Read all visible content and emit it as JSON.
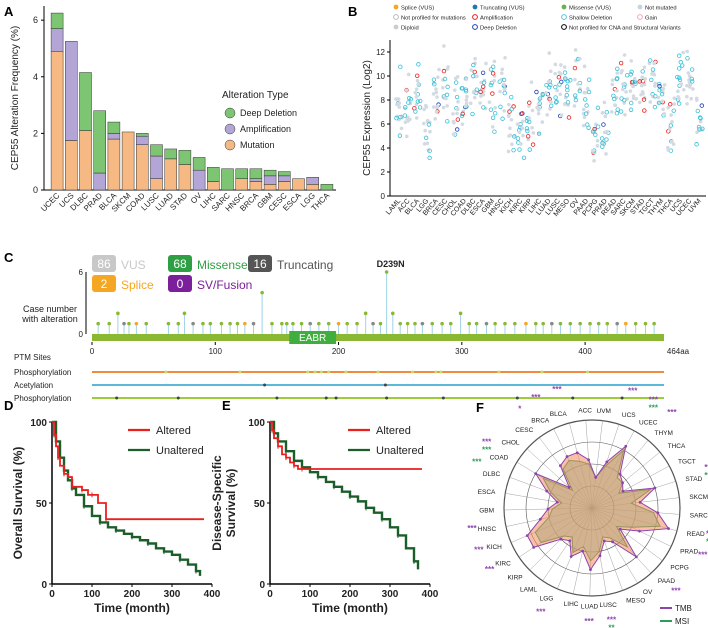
{
  "panel_labels": {
    "a": "A",
    "b": "B",
    "c": "C",
    "d": "D",
    "e": "E",
    "f": "F"
  },
  "colors": {
    "deep_deletion": "#7dc573",
    "amplification": "#b3a6d6",
    "mutation": "#f6b983",
    "altered": "#e8201f",
    "unaltered": "#1b5e2a",
    "lollipop_green": "#8ab832",
    "missense_badge": "#2ea043",
    "vus_badge": "#c8c8c8",
    "splice_badge": "#f5a623",
    "truncating_badge": "#555555",
    "sv_badge": "#7b1f9a",
    "tmb": "#8e44ad",
    "msi": "#2e9c5a",
    "stem": "#9fd3ea"
  },
  "chart_data": [
    {
      "id": "A",
      "type": "bar",
      "stacked": true,
      "ylabel": "CEP55 Alteration Frequency (%)",
      "ylim": [
        0,
        6.5
      ],
      "yticks": [
        "0",
        "2",
        "4",
        "6"
      ],
      "legend_title": "Alteration Type",
      "categories": [
        "UCEC",
        "UCS",
        "DLBC",
        "PRAD",
        "BLCA",
        "SKCM",
        "COAD",
        "LUSC",
        "LUAD",
        "STAD",
        "OV",
        "LIHC",
        "SARC",
        "HNSC",
        "BRCA",
        "GBM",
        "CESC",
        "ESCA",
        "LGG",
        "THCA"
      ],
      "series": [
        {
          "name": "Mutation",
          "values": [
            4.9,
            1.75,
            2.1,
            0,
            1.8,
            2.05,
            1.6,
            0.4,
            1.1,
            0.9,
            0,
            0.3,
            0,
            0.4,
            0.3,
            0.2,
            0.3,
            0.4,
            0.2,
            0
          ]
        },
        {
          "name": "Amplification",
          "values": [
            0.8,
            3.5,
            0,
            0.6,
            0.2,
            0,
            0.3,
            0.8,
            0,
            0,
            0.7,
            0,
            0,
            0,
            0.1,
            0.3,
            0.2,
            0,
            0.25,
            0
          ]
        },
        {
          "name": "Deep Deletion",
          "values": [
            0.55,
            0,
            2.05,
            2.2,
            0.4,
            0,
            0.1,
            0.4,
            0.35,
            0.5,
            0.45,
            0.5,
            0.75,
            0.35,
            0.35,
            0.2,
            0.15,
            0,
            0,
            0.2
          ]
        }
      ]
    },
    {
      "id": "B",
      "type": "scatter",
      "ylabel": "CEP55 Expression  (Log2)",
      "ylim": [
        0,
        13
      ],
      "yticks": [
        "0",
        "2",
        "4",
        "6",
        "8",
        "10",
        "12"
      ],
      "categories": [
        "LAML",
        "ACC",
        "BLCA",
        "LGG",
        "BRCA",
        "CESC",
        "CHOL",
        "COAD",
        "DLBC",
        "ESCA",
        "GBM",
        "HNSC",
        "KICH",
        "KIRC",
        "KIRP",
        "LIHC",
        "LUAD",
        "LUSC",
        "MESO",
        "OV",
        "PAAD",
        "PCPG",
        "PRAD",
        "READ",
        "SARC",
        "SKCM",
        "STAD",
        "TGCT",
        "THYM",
        "THCA",
        "UCS",
        "UCEC",
        "UVM"
      ],
      "medians": [
        7.5,
        8.0,
        8.5,
        5.5,
        8.8,
        9.5,
        7.8,
        8.5,
        9.2,
        9.0,
        8.5,
        9.0,
        6.0,
        5.5,
        6.5,
        8.0,
        9.0,
        9.5,
        8.5,
        9.5,
        8.0,
        5.0,
        5.5,
        8.5,
        8.8,
        8.5,
        9.0,
        9.8,
        8.0,
        6.0,
        9.5,
        9.8,
        5.5
      ],
      "legend": [
        {
          "name": "Splice (VUS)",
          "color": "#f5a623"
        },
        {
          "name": "Truncating (VUS)",
          "color": "#1f77b4"
        },
        {
          "name": "Missense (VUS)",
          "color": "#6ab04c"
        },
        {
          "name": "Not mutated",
          "color": "#c8d3e0"
        },
        {
          "name": "Not profiled for mutations",
          "color": "#ffffff"
        },
        {
          "name": "Amplification",
          "color": "#e8201f"
        },
        {
          "name": "Shallow Deletion",
          "color": "#5bc0de"
        },
        {
          "name": "Gain",
          "color": "#f4a6b7"
        },
        {
          "name": "Diploid",
          "color": "#cccccc"
        },
        {
          "name": "Deep Deletion",
          "color": "#1f3fb4"
        },
        {
          "name": "Not profiled for CNA and Structural Variants",
          "color": "#000000"
        }
      ]
    },
    {
      "id": "C",
      "type": "lollipop",
      "ylabel_line1": "Case number",
      "ylabel_line2": "with alteration",
      "ylim": [
        0,
        6
      ],
      "yticks": [
        "0",
        "6"
      ],
      "protein_length": 464,
      "length_label": "464aa",
      "xticks": [
        "0",
        "100",
        "200",
        "300",
        "400"
      ],
      "domain": {
        "name": "EABR",
        "start": 160,
        "end": 198
      },
      "hotspot": {
        "label": "D239N",
        "position": 239,
        "count": 6
      },
      "badges": [
        {
          "count": "86",
          "label": "VUS"
        },
        {
          "count": "68",
          "label": "Missense"
        },
        {
          "count": "16",
          "label": "Truncating"
        },
        {
          "count": "2",
          "label": "Splice"
        },
        {
          "count": "0",
          "label": "SV/Fusion"
        }
      ],
      "mutations": [
        [
          5,
          1
        ],
        [
          14,
          1
        ],
        [
          21,
          2
        ],
        [
          26,
          1
        ],
        [
          30,
          1
        ],
        [
          36,
          1
        ],
        [
          44,
          1
        ],
        [
          62,
          1
        ],
        [
          70,
          1
        ],
        [
          75,
          2
        ],
        [
          82,
          1
        ],
        [
          90,
          1
        ],
        [
          96,
          1
        ],
        [
          105,
          1
        ],
        [
          112,
          1
        ],
        [
          118,
          1
        ],
        [
          124,
          1
        ],
        [
          131,
          1
        ],
        [
          138,
          4
        ],
        [
          146,
          1
        ],
        [
          154,
          1
        ],
        [
          158,
          1
        ],
        [
          163,
          1
        ],
        [
          170,
          1
        ],
        [
          177,
          1
        ],
        [
          184,
          1
        ],
        [
          192,
          1
        ],
        [
          200,
          1
        ],
        [
          207,
          1
        ],
        [
          215,
          1
        ],
        [
          222,
          2
        ],
        [
          228,
          1
        ],
        [
          234,
          1
        ],
        [
          239,
          6
        ],
        [
          244,
          2
        ],
        [
          250,
          1
        ],
        [
          256,
          1
        ],
        [
          262,
          1
        ],
        [
          268,
          1
        ],
        [
          276,
          1
        ],
        [
          284,
          1
        ],
        [
          291,
          1
        ],
        [
          299,
          2
        ],
        [
          306,
          1
        ],
        [
          312,
          1
        ],
        [
          320,
          1
        ],
        [
          327,
          1
        ],
        [
          335,
          1
        ],
        [
          343,
          1
        ],
        [
          352,
          1
        ],
        [
          360,
          1
        ],
        [
          366,
          1
        ],
        [
          373,
          1
        ],
        [
          380,
          1
        ],
        [
          388,
          1
        ],
        [
          396,
          1
        ],
        [
          404,
          1
        ],
        [
          411,
          1
        ],
        [
          418,
          1
        ],
        [
          426,
          1
        ],
        [
          433,
          1
        ],
        [
          441,
          1
        ],
        [
          449,
          1
        ],
        [
          456,
          1
        ]
      ],
      "ptm_title": "PTM Sites",
      "ptm_tracks": [
        {
          "name": "Phosphorylation",
          "color": "#f08a3c",
          "sites": [
            60,
            120,
            175,
            181,
            186,
            192,
            206,
            232,
            260,
            279,
            283,
            330,
            365,
            402
          ]
        },
        {
          "name": "Acetylation",
          "color": "#5bb8d8",
          "sites": [
            140,
            238
          ]
        },
        {
          "name": "Phosphorylation",
          "color": "#9ccc3a",
          "sites": [
            20,
            70,
            150,
            190,
            198,
            239,
            285,
            345,
            390,
            430
          ]
        }
      ]
    },
    {
      "id": "D",
      "type": "line",
      "xlabel": "Time (month)",
      "ylabel": "Overall Survival (%)",
      "xlim": [
        0,
        400
      ],
      "ylim": [
        0,
        100
      ],
      "xticks": [
        "0",
        "100",
        "200",
        "300",
        "400"
      ],
      "yticks": [
        "0",
        "50",
        "100"
      ],
      "series": [
        {
          "name": "Altered",
          "x": [
            0,
            5,
            10,
            15,
            20,
            30,
            40,
            50,
            60,
            75,
            90,
            100,
            115,
            135,
            380
          ],
          "y": [
            100,
            92,
            85,
            78,
            73,
            68,
            66,
            60,
            60,
            58,
            55,
            55,
            50,
            40,
            40
          ]
        },
        {
          "name": "Unaltered",
          "x": [
            0,
            10,
            20,
            30,
            40,
            50,
            60,
            80,
            100,
            120,
            140,
            160,
            180,
            200,
            220,
            240,
            260,
            280,
            300,
            320,
            340,
            360,
            370
          ],
          "y": [
            100,
            88,
            78,
            70,
            64,
            59,
            55,
            48,
            42,
            38,
            35,
            33,
            31,
            29,
            27,
            25,
            22,
            20,
            18,
            15,
            12,
            8,
            5
          ]
        }
      ]
    },
    {
      "id": "E",
      "type": "line",
      "xlabel": "Time (month)",
      "ylabel_line1": "Disease-Specific",
      "ylabel_line2": "Survival (%)",
      "xlim": [
        0,
        400
      ],
      "ylim": [
        0,
        100
      ],
      "xticks": [
        "0",
        "100",
        "200",
        "300",
        "400"
      ],
      "yticks": [
        "0",
        "50",
        "100"
      ],
      "series": [
        {
          "name": "Altered",
          "x": [
            0,
            5,
            10,
            20,
            30,
            40,
            50,
            60,
            70,
            80,
            380
          ],
          "y": [
            100,
            95,
            90,
            85,
            80,
            78,
            75,
            73,
            71,
            71,
            71
          ]
        },
        {
          "name": "Unaltered",
          "x": [
            0,
            10,
            20,
            40,
            60,
            80,
            100,
            120,
            140,
            160,
            180,
            200,
            220,
            240,
            260,
            280,
            300,
            320,
            340,
            360,
            370
          ],
          "y": [
            100,
            93,
            88,
            82,
            76,
            72,
            69,
            66,
            63,
            60,
            57,
            54,
            51,
            47,
            44,
            40,
            35,
            30,
            22,
            14,
            9
          ]
        }
      ]
    },
    {
      "id": "F",
      "type": "radar",
      "categories": [
        "UVM",
        "UCS",
        "UCEC",
        "THYM",
        "THCA",
        "TGCT",
        "STAD",
        "SKCM",
        "SARC",
        "READ",
        "PRAD",
        "PCPG",
        "PAAD",
        "OV",
        "MESO",
        "LUSC",
        "LUAD",
        "LIHC",
        "LGG",
        "LAML",
        "KIRP",
        "KIRC",
        "KICH",
        "HNSC",
        "GBM",
        "ESCA",
        "DLBC",
        "COAD",
        "CHOL",
        "CESC",
        "BRCA",
        "BLCA",
        "ACC"
      ],
      "tmb": [
        0.35,
        0.55,
        0.8,
        0.5,
        0.45,
        0.4,
        0.75,
        0.55,
        0.75,
        0.9,
        0.6,
        0.4,
        0.75,
        0.45,
        0.4,
        0.55,
        0.7,
        0.5,
        0.6,
        0.45,
        0.5,
        0.8,
        0.8,
        0.6,
        0.5,
        0.4,
        0.55,
        0.75,
        0.35,
        0.6,
        0.65,
        0.65,
        0.55
      ],
      "msi": [
        0.35,
        0.5,
        0.75,
        0.45,
        0.45,
        0.35,
        0.7,
        0.45,
        0.7,
        0.8,
        0.5,
        0.35,
        0.6,
        0.4,
        0.35,
        0.5,
        0.6,
        0.45,
        0.55,
        0.4,
        0.45,
        0.7,
        0.7,
        0.5,
        0.45,
        0.35,
        0.5,
        0.65,
        0.3,
        0.55,
        0.6,
        0.55,
        0.5
      ],
      "stars": [
        {
          "label": "***",
          "color": "tmb",
          "cat": "UCS"
        },
        {
          "label": "***",
          "color": "tmb",
          "cat": "UCEC"
        },
        {
          "label": "***",
          "color": "msi",
          "cat": "UCEC"
        },
        {
          "label": "***",
          "color": "tmb",
          "cat": "THYM"
        },
        {
          "label": "***",
          "color": "tmb",
          "cat": "STAD"
        },
        {
          "label": "***",
          "color": "msi",
          "cat": "STAD"
        },
        {
          "label": "***",
          "color": "tmb",
          "cat": "SKCM"
        },
        {
          "label": "***",
          "color": "tmb",
          "cat": "SARC"
        },
        {
          "label": "***",
          "color": "msi",
          "cat": "SARC"
        },
        {
          "label": "***",
          "color": "tmb",
          "cat": "READ"
        },
        {
          "label": "***",
          "color": "msi",
          "cat": "READ"
        },
        {
          "label": "***",
          "color": "tmb",
          "cat": "PRAD"
        },
        {
          "label": "***",
          "color": "tmb",
          "cat": "PAAD"
        },
        {
          "label": "***",
          "color": "tmb",
          "cat": "LUSC"
        },
        {
          "label": "**",
          "color": "msi",
          "cat": "LUSC"
        },
        {
          "label": "***",
          "color": "tmb",
          "cat": "LUAD"
        },
        {
          "label": "***",
          "color": "tmb",
          "cat": "LGG"
        },
        {
          "label": "***",
          "color": "tmb",
          "cat": "KIRC"
        },
        {
          "label": "***",
          "color": "tmb",
          "cat": "KICH"
        },
        {
          "label": "***",
          "color": "tmb",
          "cat": "HNSC"
        },
        {
          "label": "***",
          "color": "msi",
          "cat": "DLBC"
        },
        {
          "label": "***",
          "color": "tmb",
          "cat": "COAD"
        },
        {
          "label": "***",
          "color": "msi",
          "cat": "COAD"
        },
        {
          "label": "*",
          "color": "tmb",
          "cat": "CESC"
        },
        {
          "label": "***",
          "color": "tmb",
          "cat": "BRCA"
        },
        {
          "label": "***",
          "color": "tmb",
          "cat": "BLCA"
        }
      ],
      "legend": [
        {
          "name": "TMB"
        },
        {
          "name": "MSI"
        }
      ]
    }
  ]
}
